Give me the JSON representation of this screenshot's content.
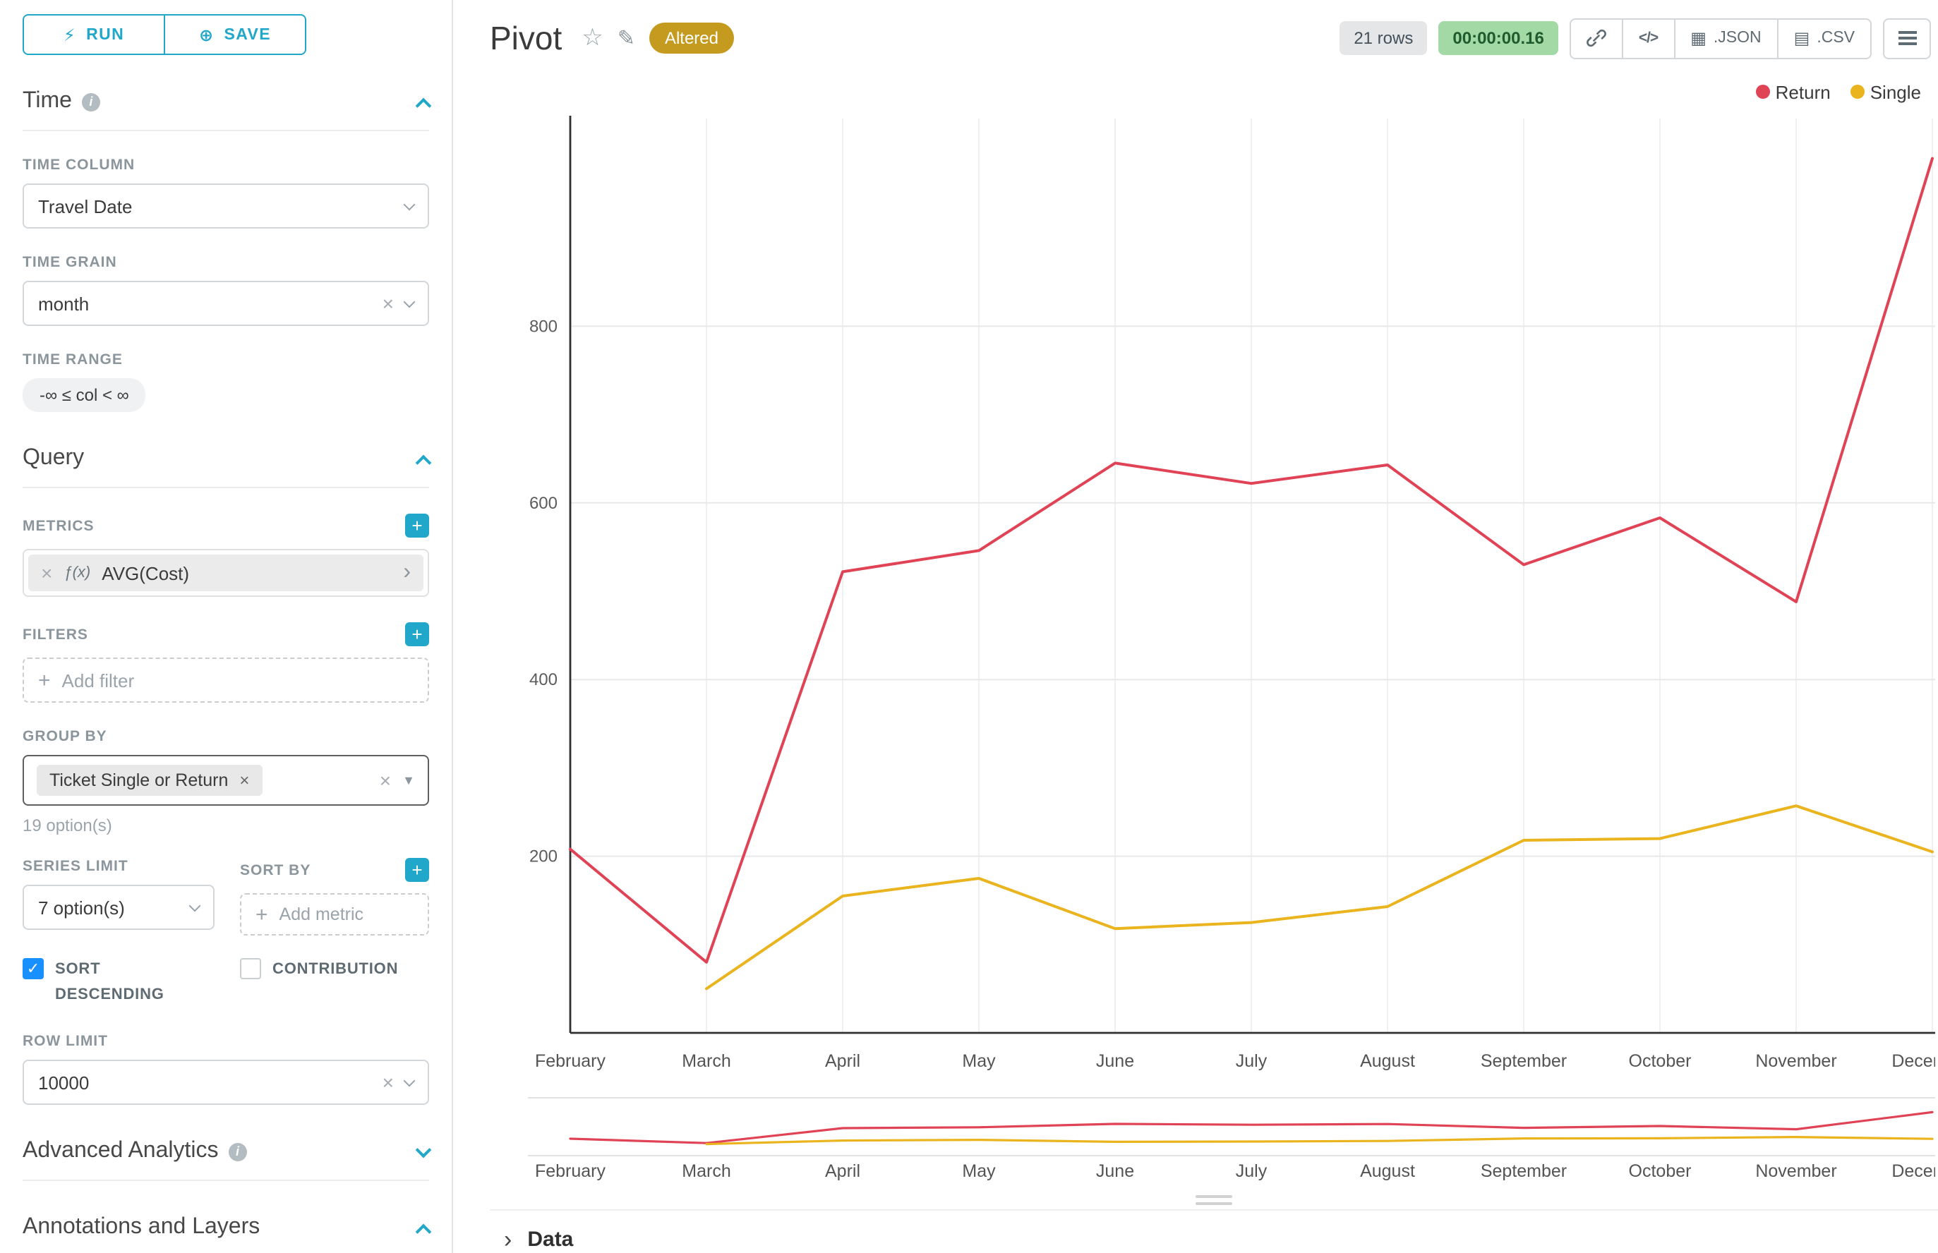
{
  "colors": {
    "accent": "#20a7c9",
    "checkbox_checked": "#1890ff",
    "altered_badge_bg": "#c49b1f",
    "rows_badge_bg": "#e4e6e8",
    "timer_bg": "#a3d9a5",
    "timer_text": "#1f5b2e"
  },
  "icons": {
    "run": "⚡",
    "save": "⊕",
    "info": "i",
    "star": "☆",
    "edit": "✎",
    "code": "</>",
    "json": "▦",
    "csv": "▤",
    "close": "×",
    "plus": "+",
    "caret": "▼",
    "chevron_right": "›",
    "check": "✓"
  },
  "sidebar": {
    "run_label": "RUN",
    "save_label": "SAVE",
    "time": {
      "title": "Time",
      "time_column_label": "TIME COLUMN",
      "time_column_value": "Travel Date",
      "time_grain_label": "TIME GRAIN",
      "time_grain_value": "month",
      "time_range_label": "TIME RANGE",
      "time_range_value": "-∞ ≤ col < ∞"
    },
    "query": {
      "title": "Query",
      "metrics_label": "METRICS",
      "metric_prefix": "ƒ(x)",
      "metric_value": "AVG(Cost)",
      "filters_label": "FILTERS",
      "add_filter_label": "Add filter",
      "group_by_label": "GROUP BY",
      "group_by_value": "Ticket Single or Return",
      "options_hint": "19 option(s)",
      "series_limit_label": "SERIES LIMIT",
      "series_limit_value": "7 option(s)",
      "sort_by_label": "SORT BY",
      "add_metric_label": "Add metric",
      "sort_descending_label": "SORT DESCENDING",
      "contribution_label": "CONTRIBUTION",
      "row_limit_label": "ROW LIMIT",
      "row_limit_value": "10000"
    },
    "advanced_analytics_title": "Advanced Analytics",
    "annotations_title": "Annotations and Layers"
  },
  "header": {
    "title": "Pivot",
    "altered_badge": "Altered",
    "rows_badge": "21 rows",
    "timer": "00:00:00.16",
    "json_label": ".JSON",
    "csv_label": ".CSV"
  },
  "data_panel": {
    "title": "Data"
  },
  "chart_data": {
    "type": "line",
    "title": "Pivot",
    "x": [
      "February",
      "March",
      "April",
      "May",
      "June",
      "July",
      "August",
      "September",
      "October",
      "November",
      "December"
    ],
    "series": [
      {
        "name": "Return",
        "color": "#e04355",
        "values": [
          208,
          80,
          522,
          546,
          645,
          622,
          643,
          530,
          583,
          488,
          990
        ]
      },
      {
        "name": "Single",
        "color": "#eab41e",
        "values": [
          null,
          50,
          155,
          175,
          118,
          125,
          143,
          218,
          220,
          257,
          205
        ]
      }
    ],
    "yticks": [
      200,
      400,
      600,
      800
    ],
    "ylim": [
      0,
      1000
    ],
    "xlabel": "",
    "ylabel": "",
    "grid": true,
    "legend_position": "top-right"
  }
}
